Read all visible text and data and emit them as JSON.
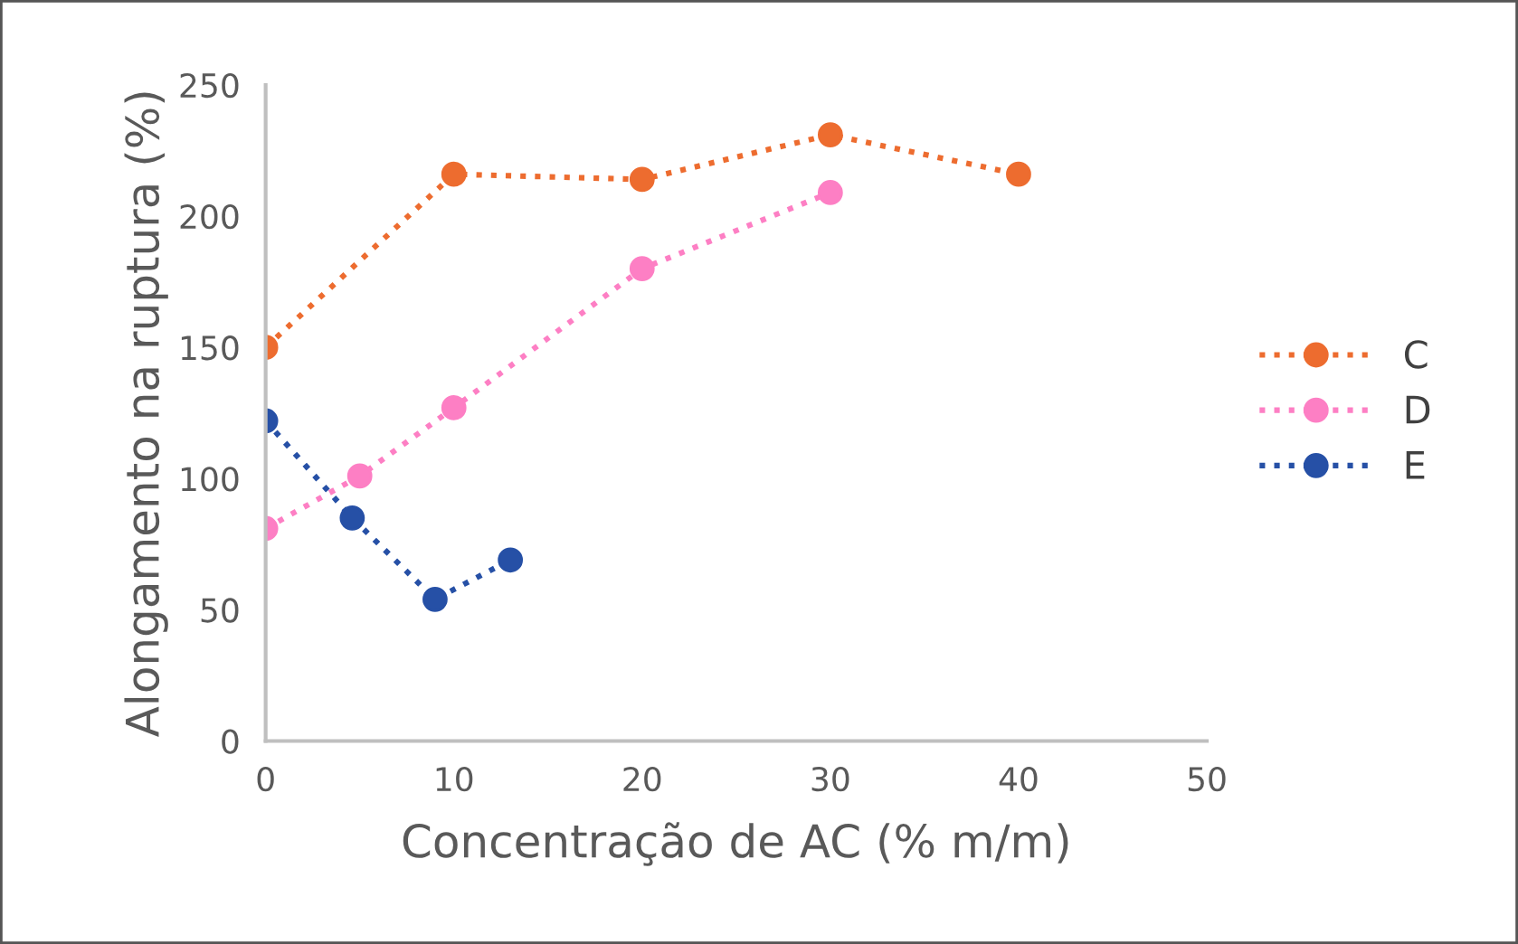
{
  "chart_data": {
    "type": "line",
    "xlabel": "Concentração de AC (% m/m)",
    "ylabel": "Alongamento na ruptura (%)",
    "xlim": [
      0,
      50
    ],
    "xticks": [
      0,
      10,
      20,
      30,
      40,
      50
    ],
    "ylim": [
      0,
      250
    ],
    "yticks": [
      0,
      50,
      100,
      150,
      200,
      250
    ],
    "grid": false,
    "legend": "right",
    "marker": "circle",
    "line_style": "dotted",
    "series": [
      {
        "name": "C",
        "color": "#ed6c2f",
        "x": [
          0,
          10,
          20,
          30,
          40
        ],
        "values": [
          150,
          216,
          214,
          231,
          216
        ]
      },
      {
        "name": "D",
        "color": "#fd7fc4",
        "x": [
          0,
          5,
          10,
          20,
          30
        ],
        "values": [
          81,
          101,
          127,
          180,
          209
        ]
      },
      {
        "name": "E",
        "color": "#2650a6",
        "x": [
          0,
          4.6,
          9,
          13
        ],
        "values": [
          122,
          85,
          54,
          69
        ]
      }
    ]
  }
}
